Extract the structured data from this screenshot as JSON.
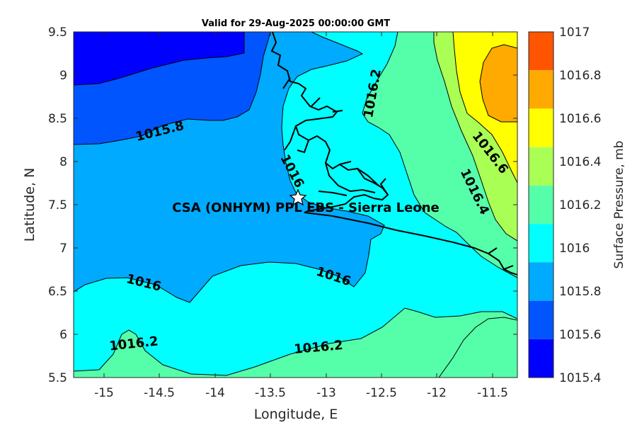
{
  "title": "Valid for 29-Aug-2025 00:00:00 GMT",
  "xlabel": "Longitude, E",
  "ylabel": "Latitude, N",
  "colorbar_label": "Surface Pressure, mb",
  "annotation": "CSA (ONHYM) PPL EBS  - Sierra Leone",
  "x_ticks": [
    "-15",
    "-14.5",
    "-14",
    "-13.5",
    "-13",
    "-12.5",
    "-12",
    "-11.5"
  ],
  "y_ticks": [
    "9.5",
    "9",
    "8.5",
    "8",
    "7.5",
    "7",
    "6.5",
    "6",
    "5.5"
  ],
  "colorbar_ticks": [
    "1017",
    "1016.8",
    "1016.6",
    "1016.4",
    "1016.2",
    "1016",
    "1015.8",
    "1015.6",
    "1015.4"
  ],
  "contour_labels": [
    "1015.8",
    "1016",
    "1016",
    "1016",
    "1016.2",
    "1016.2",
    "1016.2",
    "1016.4",
    "1016.6"
  ],
  "station_marker": "star",
  "station_lon": -13.22,
  "station_lat": 7.58,
  "extent": {
    "lon": [
      -15.25,
      -11.25
    ],
    "lat": [
      5.5,
      9.5
    ]
  },
  "colormap": {
    "1015.4": "#0000ff",
    "1015.6": "#0055ff",
    "1015.8": "#00aaff",
    "1016": "#00ffff",
    "1016.2": "#55ffaa",
    "1016.4": "#aaff55",
    "1016.6": "#ffff00",
    "1016.8": "#ffaa00",
    "1017": "#ff5500"
  }
}
